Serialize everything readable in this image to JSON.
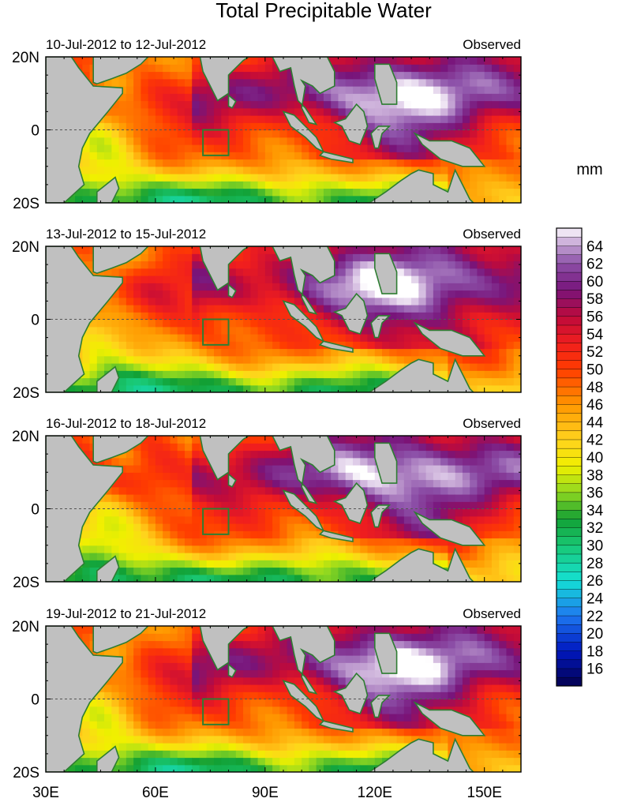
{
  "chart_data": {
    "type": "heatmap",
    "title": "Total Precipitable Water",
    "units": "mm",
    "x_ticks": [
      {
        "value": 30,
        "label": "30E"
      },
      {
        "value": 60,
        "label": "60E"
      },
      {
        "value": 90,
        "label": "90E"
      },
      {
        "value": 120,
        "label": "120E"
      },
      {
        "value": 150,
        "label": "150E"
      }
    ],
    "y_ticks": [
      {
        "value": 20,
        "label": "20N"
      },
      {
        "value": 0,
        "label": "0"
      },
      {
        "value": -20,
        "label": "20S"
      }
    ],
    "xlim": [
      30,
      160
    ],
    "ylim": [
      -20,
      20
    ],
    "colorbar": {
      "min": 14,
      "max": 66,
      "step": 1,
      "labels": [
        "16",
        "18",
        "20",
        "22",
        "24",
        "26",
        "28",
        "30",
        "32",
        "34",
        "36",
        "38",
        "40",
        "42",
        "44",
        "46",
        "48",
        "50",
        "52",
        "54",
        "56",
        "58",
        "60",
        "62",
        "64"
      ],
      "stops": [
        {
          "v": 14,
          "c": "#04004e"
        },
        {
          "v": 18,
          "c": "#0018c0"
        },
        {
          "v": 22,
          "c": "#1e78f0"
        },
        {
          "v": 26,
          "c": "#14e0d4"
        },
        {
          "v": 30,
          "c": "#19c874"
        },
        {
          "v": 33,
          "c": "#12a034"
        },
        {
          "v": 36,
          "c": "#90d820"
        },
        {
          "v": 39,
          "c": "#f0f000"
        },
        {
          "v": 42,
          "c": "#ffd21e"
        },
        {
          "v": 46,
          "c": "#ff9600"
        },
        {
          "v": 50,
          "c": "#ff3c00"
        },
        {
          "v": 53,
          "c": "#f01e1e"
        },
        {
          "v": 56,
          "c": "#be0a3c"
        },
        {
          "v": 59,
          "c": "#78147a"
        },
        {
          "v": 62,
          "c": "#8c50a8"
        },
        {
          "v": 65,
          "c": "#dcc8e6"
        },
        {
          "v": 66,
          "c": "#ffffff"
        }
      ]
    },
    "panels": [
      {
        "period": "10-Jul-2012 to 12-Jul-2012",
        "label": "Observed"
      },
      {
        "period": "13-Jul-2012 to 15-Jul-2012",
        "label": "Observed"
      },
      {
        "period": "16-Jul-2012 to 18-Jul-2012",
        "label": "Observed"
      },
      {
        "period": "19-Jul-2012 to 21-Jul-2012",
        "label": "Observed"
      }
    ],
    "box_region": {
      "lon": [
        73,
        80
      ],
      "lat": [
        -7,
        0
      ]
    }
  },
  "colors": {
    "land": "#c0c0c0",
    "coast": "#2e7d32",
    "equator": "#555555"
  }
}
